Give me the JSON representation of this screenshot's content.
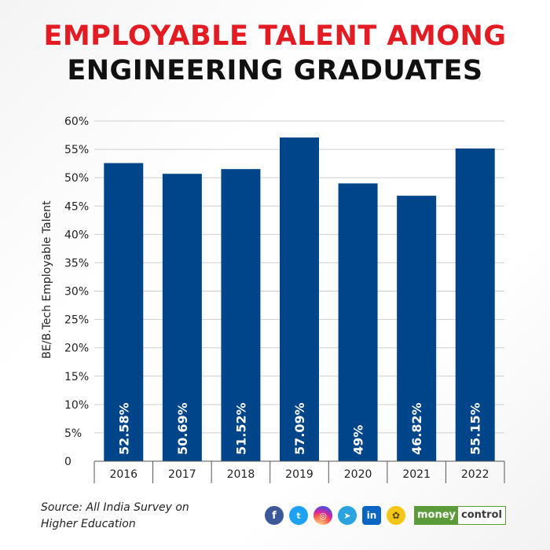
{
  "header": {
    "title_line1": "EMPLOYABLE TALENT AMONG",
    "title_line2": "ENGINEERING GRADUATES",
    "title_line1_color": "#e31b23",
    "title_line2_color": "#111111"
  },
  "chart_data": {
    "type": "bar",
    "categories": [
      "2016",
      "2017",
      "2018",
      "2019",
      "2020",
      "2021",
      "2022"
    ],
    "values": [
      52.58,
      50.69,
      51.52,
      57.09,
      49,
      46.82,
      55.15
    ],
    "data_labels": [
      "52.58%",
      "50.69%",
      "51.52%",
      "57.09%",
      "49%",
      "46.82%",
      "55.15%"
    ],
    "ylabel": "BE/B.Tech Employable Talent",
    "ylim": [
      0,
      60
    ],
    "y_ticks": [
      0,
      5,
      10,
      15,
      20,
      25,
      30,
      35,
      40,
      45,
      50,
      55,
      60
    ],
    "y_tick_labels": [
      "0",
      "5%",
      "10%",
      "15%",
      "20%",
      "25%",
      "30%",
      "35%",
      "40%",
      "45%",
      "50%",
      "55%",
      "60%"
    ],
    "grid": true,
    "bar_color": "#00458a"
  },
  "footer": {
    "source_line1": "Source: All India Survey on",
    "source_line2": "Higher Education",
    "social_icons": [
      "facebook-icon",
      "twitter-icon",
      "instagram-icon",
      "telegram-icon",
      "linkedin-icon",
      "koo-icon"
    ],
    "social_glyphs": [
      "f",
      "t",
      "◎",
      "➤",
      "in",
      "✿"
    ],
    "brand_part1": "money",
    "brand_part2": "control",
    "brand_color": "#5c9b3a"
  }
}
